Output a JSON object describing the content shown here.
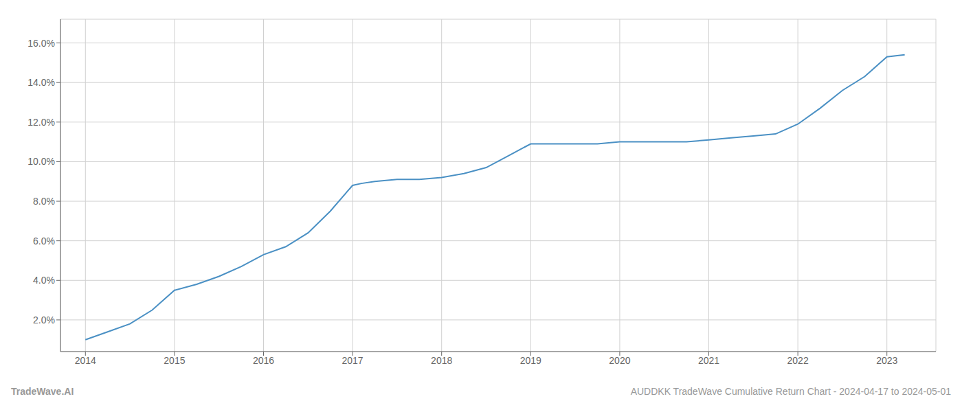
{
  "chart_data": {
    "type": "line",
    "x": [
      2014.0,
      2014.25,
      2014.5,
      2014.75,
      2015.0,
      2015.25,
      2015.5,
      2015.75,
      2016.0,
      2016.25,
      2016.5,
      2016.75,
      2017.0,
      2017.1,
      2017.25,
      2017.5,
      2017.75,
      2018.0,
      2018.25,
      2018.5,
      2018.75,
      2019.0,
      2019.25,
      2019.5,
      2019.75,
      2020.0,
      2020.25,
      2020.5,
      2020.75,
      2021.0,
      2021.25,
      2021.5,
      2021.75,
      2022.0,
      2022.25,
      2022.5,
      2022.75,
      2023.0,
      2023.2
    ],
    "values": [
      0.01,
      0.014,
      0.018,
      0.025,
      0.035,
      0.038,
      0.042,
      0.047,
      0.053,
      0.057,
      0.064,
      0.075,
      0.088,
      0.089,
      0.09,
      0.091,
      0.091,
      0.092,
      0.094,
      0.097,
      0.103,
      0.109,
      0.109,
      0.109,
      0.109,
      0.11,
      0.11,
      0.11,
      0.11,
      0.111,
      0.112,
      0.113,
      0.114,
      0.119,
      0.127,
      0.136,
      0.143,
      0.153,
      0.154
    ],
    "color": "#4a90c4",
    "xlim": [
      2013.72,
      2023.55
    ],
    "xticks": [
      2014,
      2015,
      2016,
      2017,
      2018,
      2019,
      2020,
      2021,
      2022,
      2023
    ],
    "ylim": [
      0.004,
      0.172
    ],
    "yticks": [
      {
        "value": 0.02,
        "label": "2.0%"
      },
      {
        "value": 0.04,
        "label": "4.0%"
      },
      {
        "value": 0.06,
        "label": "6.0%"
      },
      {
        "value": 0.08,
        "label": "8.0%"
      },
      {
        "value": 0.1,
        "label": "10.0%"
      },
      {
        "value": 0.12,
        "label": "12.0%"
      },
      {
        "value": 0.14,
        "label": "14.0%"
      },
      {
        "value": 0.16,
        "label": "16.0%"
      }
    ],
    "grid": true,
    "annotations": [
      "TradeWave.AI",
      "AUDDKK TradeWave Cumulative Return Chart - 2024-04-17 to 2024-05-01"
    ]
  }
}
